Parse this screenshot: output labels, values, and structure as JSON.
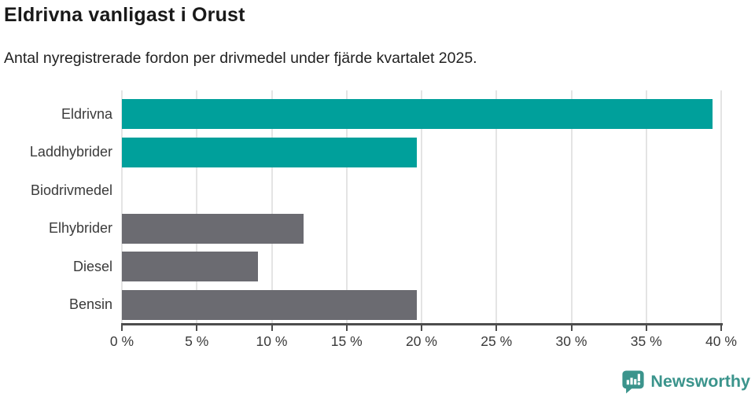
{
  "chart_data": {
    "type": "bar",
    "orientation": "horizontal",
    "title": "Eldrivna vanligast i Orust",
    "subtitle": "Antal nyregistrerade fordon per drivmedel under fjärde kvartalet 2025.",
    "categories": [
      "Eldrivna",
      "Laddhybrider",
      "Biodrivmedel",
      "Elhybrider",
      "Diesel",
      "Bensin"
    ],
    "values": [
      39.4,
      19.7,
      0,
      12.1,
      9.1,
      19.7
    ],
    "unit": "%",
    "bar_colors": [
      "#00a09b",
      "#00a09b",
      "#00a09b",
      "#6b6b71",
      "#6b6b71",
      "#6b6b71"
    ],
    "palette": {
      "highlight_teal": "#00a09b",
      "default_gray": "#6b6b71"
    },
    "xlabel": "",
    "ylabel": "",
    "xlim": [
      0,
      40
    ],
    "x_tick_values": [
      0,
      5,
      10,
      15,
      20,
      25,
      30,
      35,
      40
    ],
    "x_tick_labels": [
      "0 %",
      "5 %",
      "10 %",
      "15 %",
      "20 %",
      "25 %",
      "30 %",
      "35 %",
      "40 %"
    ],
    "grid": "vertical",
    "gridline_color": "#e4e4e4",
    "axis_color": "#4d4d4d",
    "legend": "none"
  },
  "branding": {
    "logo_text": "Newsworthy",
    "logo_color": "#3b948c",
    "logo_icon": "bar-chart-speech-bubble-icon"
  }
}
